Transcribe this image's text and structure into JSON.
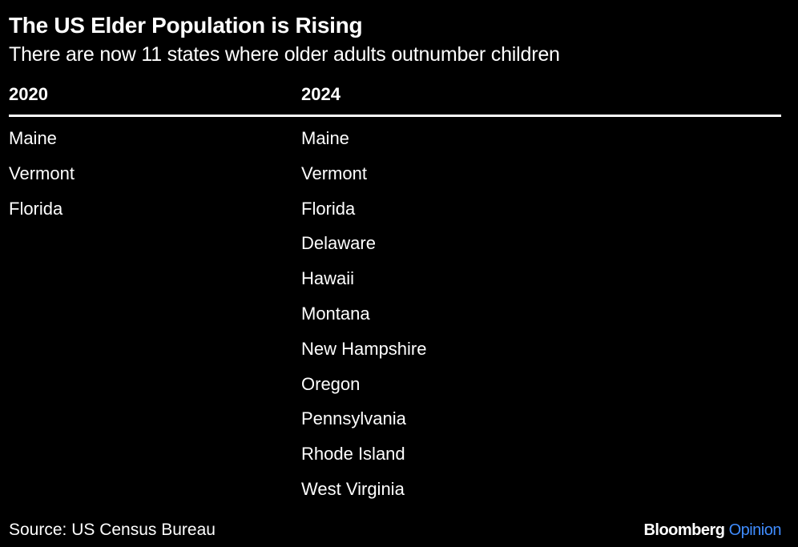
{
  "title": "The US Elder Population is Rising",
  "subtitle": "There are now 11 states where older adults outnumber children",
  "chart_data": {
    "type": "table",
    "columns": [
      "2020",
      "2024"
    ],
    "rows": [
      [
        "Maine",
        "Maine"
      ],
      [
        "Vermont",
        "Vermont"
      ],
      [
        "Florida",
        "Florida"
      ],
      [
        "",
        "Delaware"
      ],
      [
        "",
        "Hawaii"
      ],
      [
        "",
        "Montana"
      ],
      [
        "",
        "New Hampshire"
      ],
      [
        "",
        "Oregon"
      ],
      [
        "",
        "Pennsylvania"
      ],
      [
        "",
        "Rhode Island"
      ],
      [
        "",
        "West Virginia"
      ]
    ]
  },
  "source": "Source: US Census Bureau",
  "brand": {
    "part1": "Bloomberg",
    "part2": "Opinion",
    "accent_color": "#3f8cff"
  }
}
